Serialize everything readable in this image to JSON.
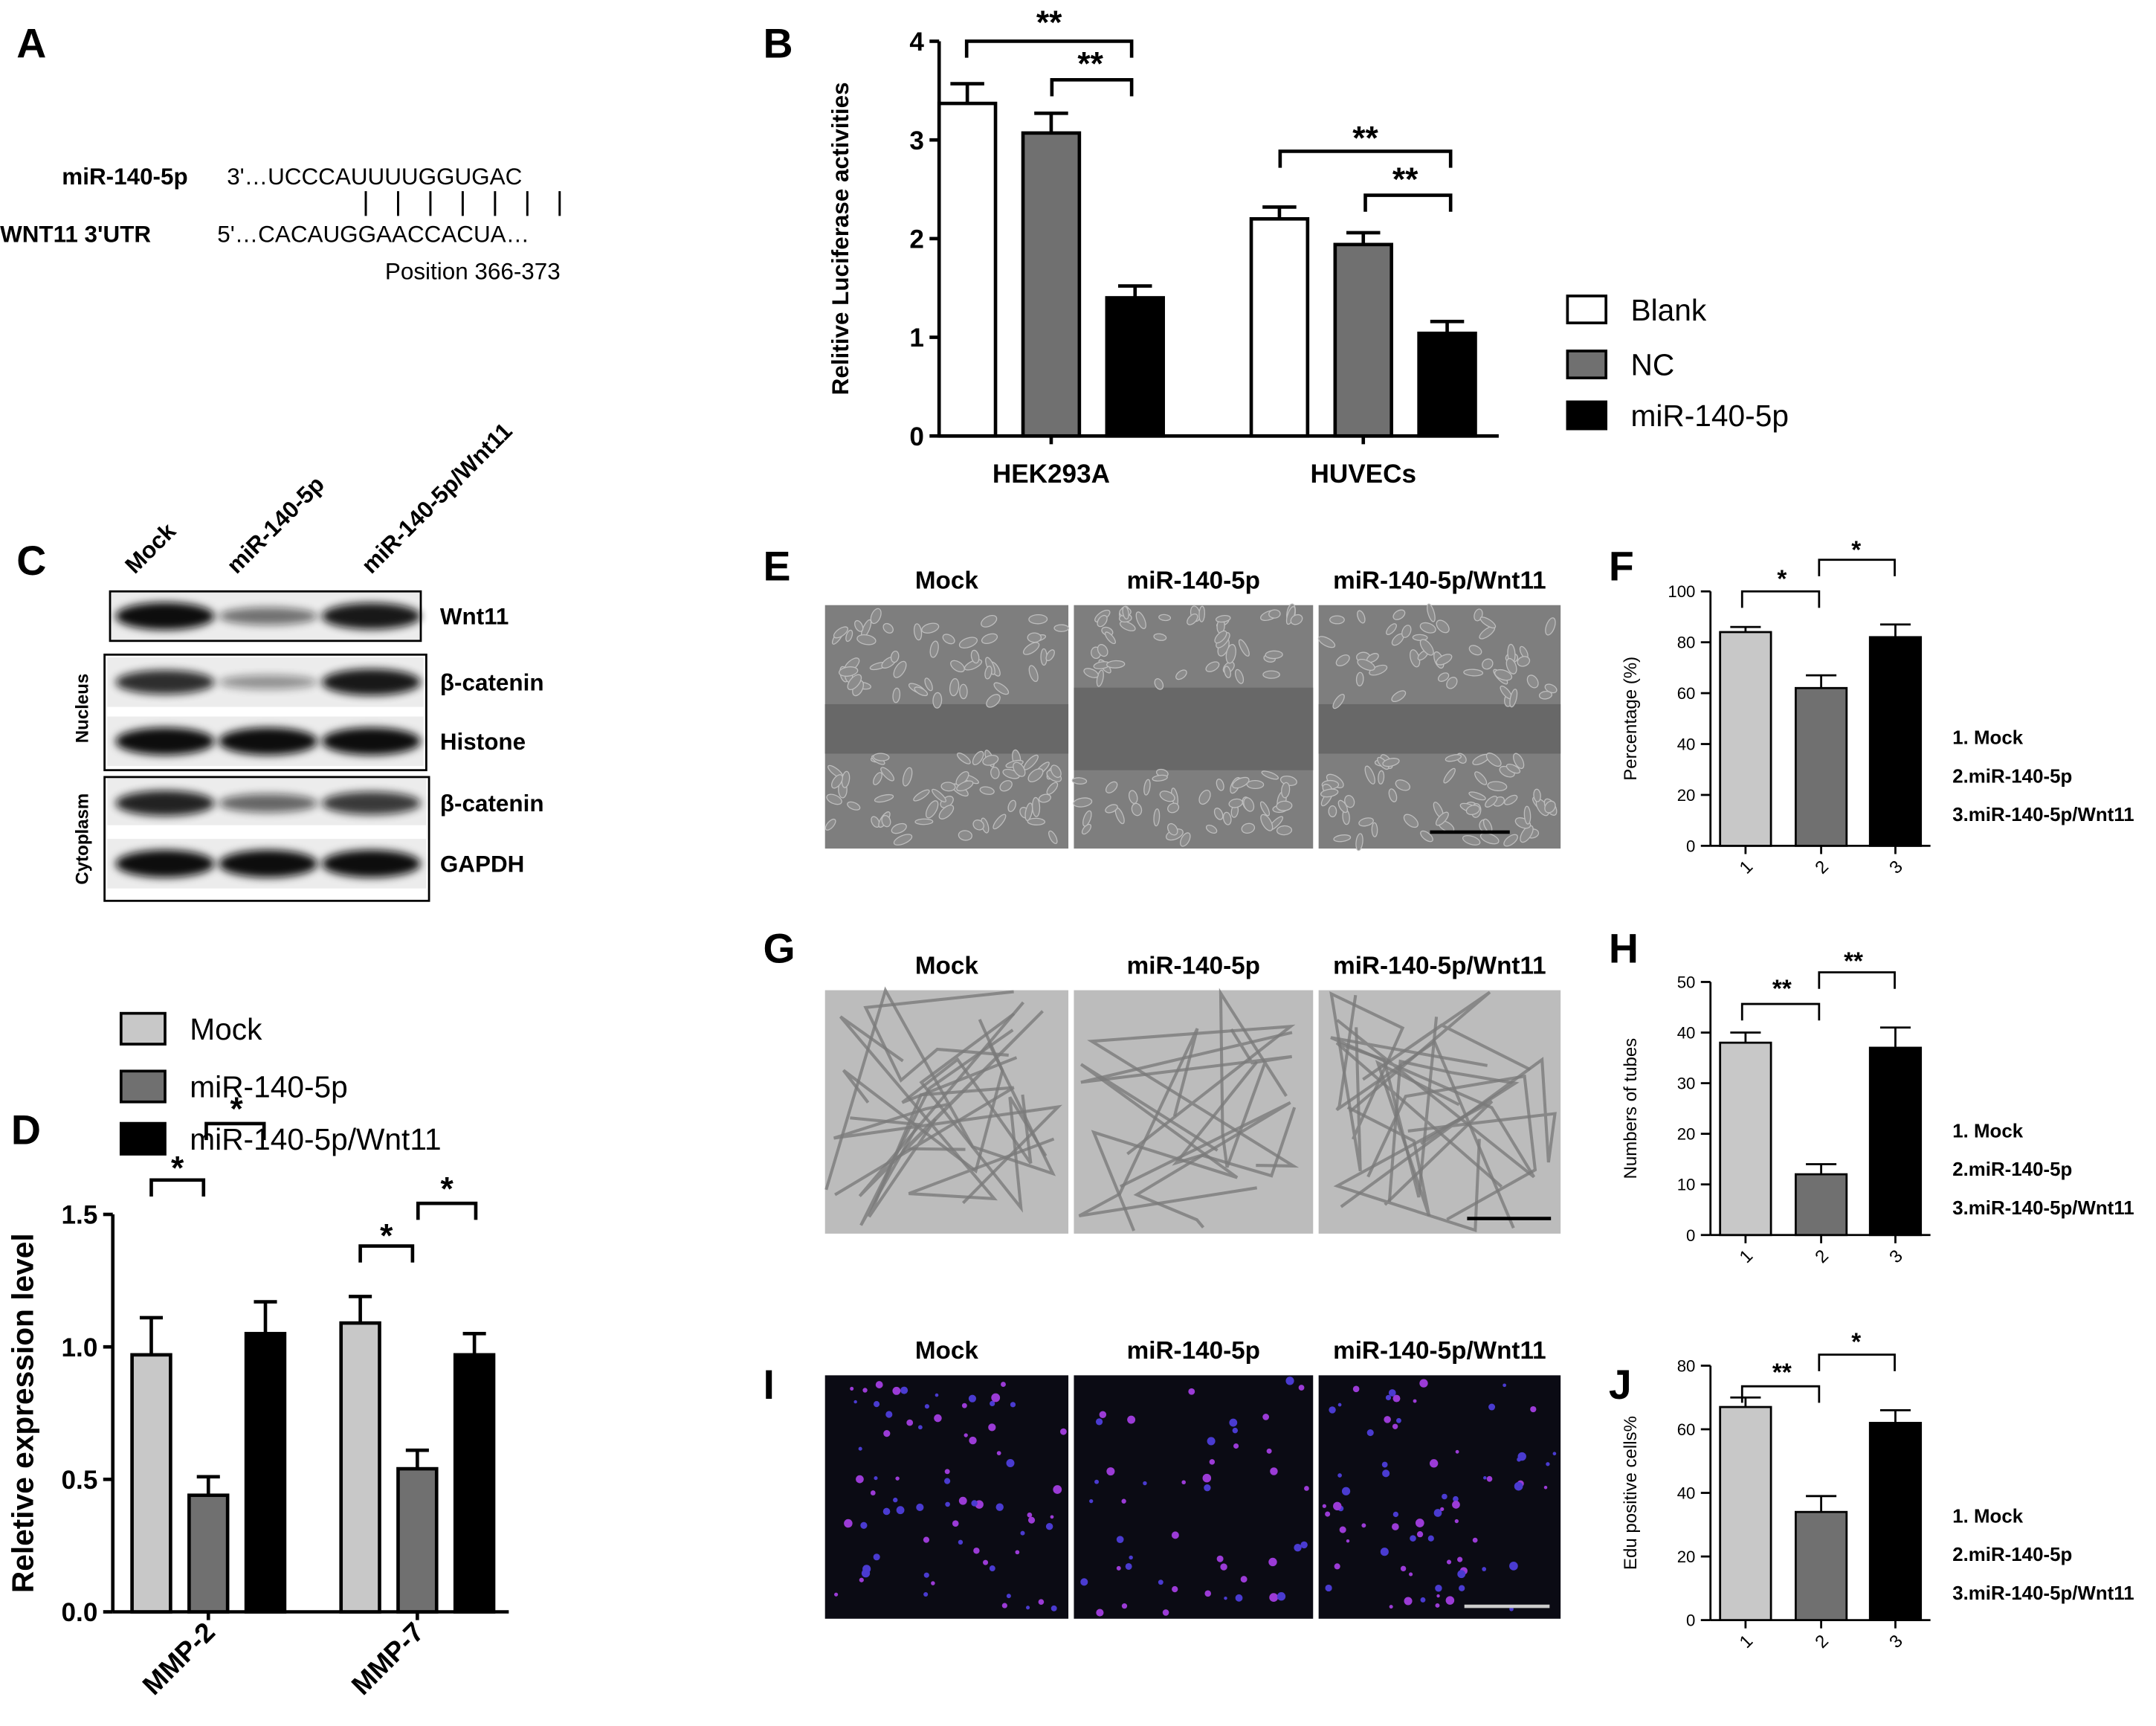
{
  "panel_A": {
    "label": "A",
    "mirna": "miR-140-5p",
    "mirna_seq": "3'…UCCCAUUUUGGUGAC",
    "target": "WNT11 3'UTR",
    "target_seq": "5'…CACAUGGAACCACUA…",
    "position": "Position 366-373"
  },
  "panel_C": {
    "label": "C",
    "lanes": [
      "Mock",
      "miR-140-5p",
      "miR-140-5p/Wnt11"
    ],
    "bands": [
      "Wnt11",
      "β-catenin",
      "Histone",
      "β-catenin",
      "GAPDH"
    ],
    "fractions": [
      "Nucleus",
      "Cytoplasm"
    ]
  },
  "image_panels": [
    {
      "label": "E",
      "columns": [
        "Mock",
        "miR-140-5p",
        "miR-140-5p/Wnt11"
      ]
    },
    {
      "label": "G",
      "columns": [
        "Mock",
        "miR-140-5p",
        "miR-140-5p/Wnt11"
      ]
    },
    {
      "label": "I",
      "columns": [
        "Mock",
        "miR-140-5p",
        "miR-140-5p/Wnt11"
      ]
    }
  ],
  "chart_data": [
    {
      "type": "bar",
      "label": "B",
      "ylabel": "Relitive Luciferase activities",
      "categories": [
        "HEK293A",
        "HUVECs"
      ],
      "series": [
        {
          "name": "Blank",
          "color": "#ffffff",
          "values": [
            3.37,
            2.2
          ],
          "errors": [
            0.2,
            0.12
          ]
        },
        {
          "name": "NC",
          "color": "#707070",
          "values": [
            3.07,
            1.94
          ],
          "errors": [
            0.2,
            0.12
          ]
        },
        {
          "name": "miR-140-5p",
          "color": "#000000",
          "values": [
            1.4,
            1.04
          ],
          "errors": [
            0.12,
            0.12
          ]
        }
      ],
      "ylim": [
        0,
        4
      ],
      "yticks": [
        0,
        1,
        2,
        3,
        4
      ],
      "annotations": [
        "**",
        "**",
        "**",
        "**"
      ]
    },
    {
      "type": "bar",
      "label": "D",
      "ylabel": "Reletive expression level",
      "categories": [
        "MMP-2",
        "MMP-7"
      ],
      "series": [
        {
          "name": "Mock",
          "color": "#c8c8c8",
          "values": [
            0.97,
            1.09
          ],
          "errors": [
            0.14,
            0.1
          ]
        },
        {
          "name": "miR-140-5p",
          "color": "#707070",
          "values": [
            0.44,
            0.54
          ],
          "errors": [
            0.07,
            0.07
          ]
        },
        {
          "name": "miR-140-5p/Wnt11",
          "color": "#000000",
          "values": [
            1.05,
            0.97
          ],
          "errors": [
            0.12,
            0.08
          ]
        }
      ],
      "ylim": [
        0,
        1.5
      ],
      "yticks": [
        {
          "value": 0,
          "label": "0.0"
        },
        0.5,
        {
          "value": 1,
          "label": "1.0"
        },
        1.5
      ],
      "annotations": [
        "*",
        "*",
        "*",
        "*"
      ]
    },
    {
      "type": "bar",
      "label": "F",
      "ylabel": "Percentage (%)",
      "categories": [
        "1",
        "2",
        "3"
      ],
      "values": [
        84,
        62,
        82
      ],
      "errors": [
        2,
        5,
        5
      ],
      "colors": [
        "#c8c8c8",
        "#707070",
        "#000000"
      ],
      "legend": [
        "1. Mock",
        "2.miR-140-5p",
        "3.miR-140-5p/Wnt11"
      ],
      "ylim": [
        0,
        100
      ],
      "yticks": [
        0,
        20,
        40,
        60,
        80,
        100
      ],
      "annotations": [
        "*",
        "*"
      ]
    },
    {
      "type": "bar",
      "label": "H",
      "ylabel": "Numbers of tubes",
      "categories": [
        "1",
        "2",
        "3"
      ],
      "values": [
        38,
        12,
        37
      ],
      "errors": [
        2,
        2,
        4
      ],
      "colors": [
        "#c8c8c8",
        "#707070",
        "#000000"
      ],
      "legend": [
        "1. Mock",
        "2.miR-140-5p",
        "3.miR-140-5p/Wnt11"
      ],
      "ylim": [
        0,
        50
      ],
      "yticks": [
        0,
        10,
        20,
        30,
        40,
        50
      ],
      "annotations": [
        "**",
        "**"
      ]
    },
    {
      "type": "bar",
      "label": "J",
      "ylabel": "Edu positive cells%",
      "categories": [
        "1",
        "2",
        "3"
      ],
      "values": [
        67,
        34,
        62
      ],
      "errors": [
        3,
        5,
        4
      ],
      "colors": [
        "#c8c8c8",
        "#707070",
        "#000000"
      ],
      "legend": [
        "1. Mock",
        "2.miR-140-5p",
        "3.miR-140-5p/Wnt11"
      ],
      "ylim": [
        0,
        80
      ],
      "yticks": [
        0,
        20,
        40,
        60,
        80
      ],
      "annotations": [
        "**",
        "*"
      ]
    }
  ]
}
